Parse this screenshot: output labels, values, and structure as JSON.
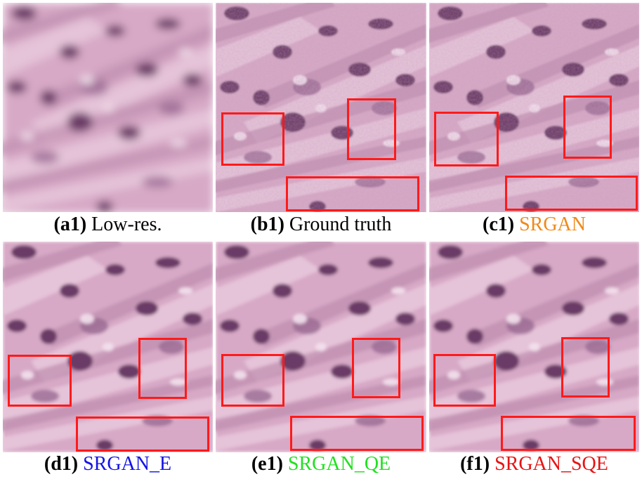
{
  "panels": [
    {
      "id": "a1",
      "label": "a1",
      "title": "Low-res.",
      "title_color": "#000000"
    },
    {
      "id": "b1",
      "label": "b1",
      "title": "Ground truth",
      "title_color": "#000000"
    },
    {
      "id": "c1",
      "label": "c1",
      "title": "SRGAN",
      "title_color": "#f08a1a"
    },
    {
      "id": "d1",
      "label": "d1",
      "title": "SRGAN_E",
      "title_color": "#1414e6"
    },
    {
      "id": "e1",
      "label": "e1",
      "title": "SRGAN_QE",
      "title_color": "#22e022"
    },
    {
      "id": "f1",
      "label": "f1",
      "title": "SRGAN_SQE",
      "title_color": "#e61414"
    }
  ],
  "colors": {
    "tissue_base": "#d7a9c6",
    "nucleus": "#6a3a66",
    "roi_box": "#ff1a1a"
  }
}
